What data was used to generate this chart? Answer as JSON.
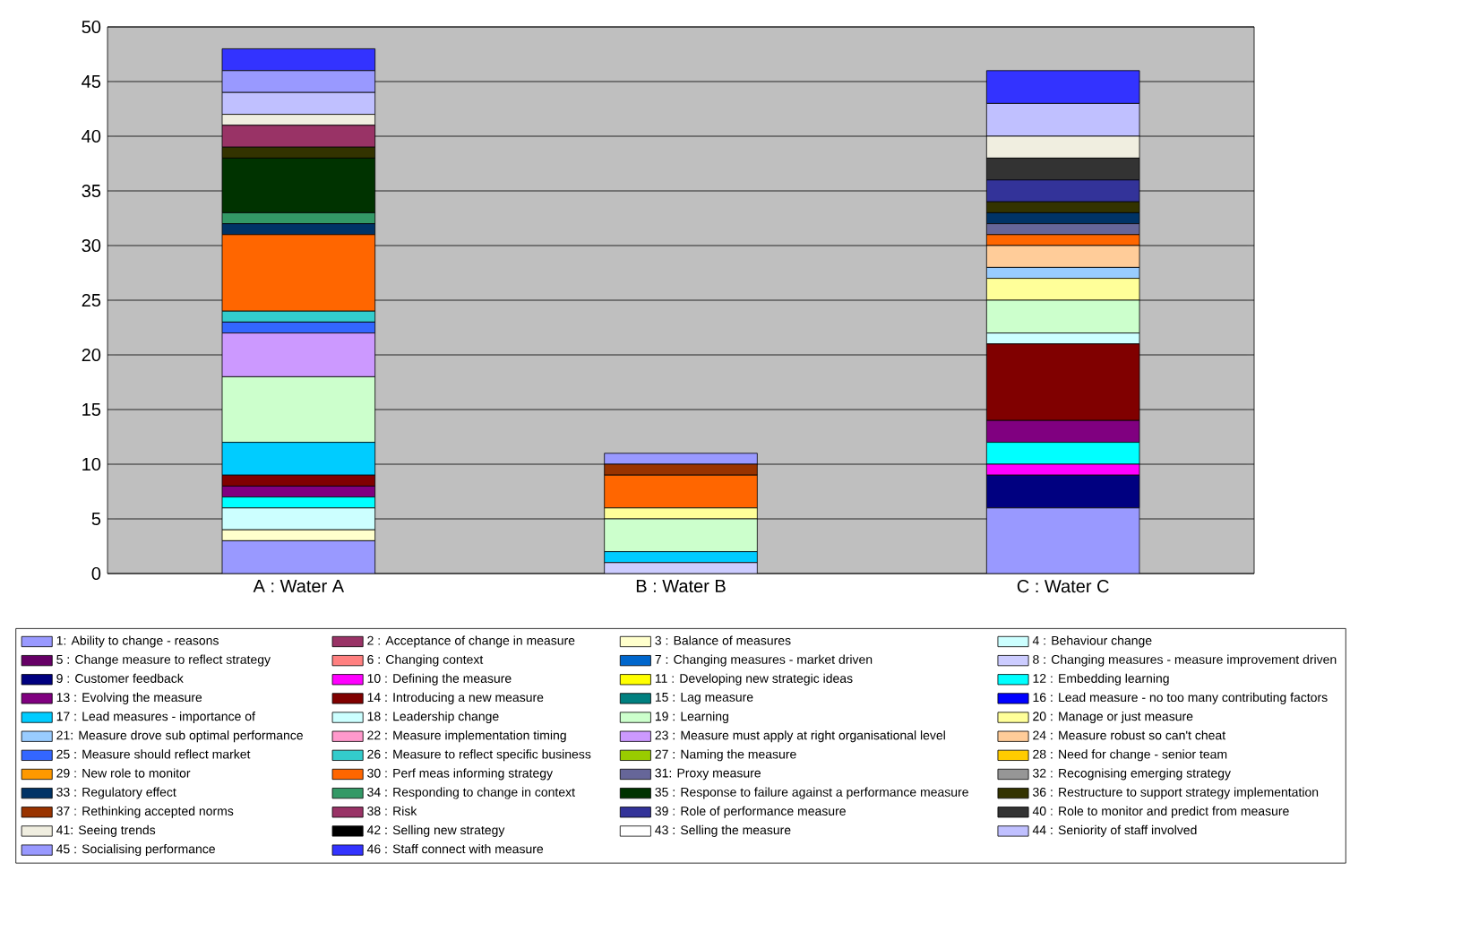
{
  "chart_data": {
    "type": "bar",
    "stacked": true,
    "grid": "y",
    "legend": "bottom",
    "categories": [
      "A : Water A",
      "B : Water B",
      "C : Water C"
    ],
    "ylim": [
      0,
      50
    ],
    "yticks": [
      0,
      5,
      10,
      15,
      20,
      25,
      30,
      35,
      40,
      45,
      50
    ],
    "series": [
      {
        "name": "1: Ability to change - reasons",
        "color": "#9999ff",
        "values": [
          3,
          0,
          6
        ]
      },
      {
        "name": "2 : Acceptance of change in measure",
        "color": "#993366",
        "values": [
          0,
          0,
          0
        ]
      },
      {
        "name": "3 : Balance of measures",
        "color": "#ffffcc",
        "values": [
          1,
          0,
          0
        ]
      },
      {
        "name": "4 : Behaviour change",
        "color": "#ccffff",
        "values": [
          2,
          0,
          0
        ]
      },
      {
        "name": "5 : Change measure to reflect strategy",
        "color": "#660066",
        "values": [
          0,
          0,
          0
        ]
      },
      {
        "name": "6 : Changing context",
        "color": "#ff8080",
        "values": [
          0,
          0,
          0
        ]
      },
      {
        "name": "7 : Changing measures - market driven",
        "color": "#0066cc",
        "values": [
          0,
          0,
          0
        ]
      },
      {
        "name": "8 : Changing measures - measure improvement driven",
        "color": "#ccccff",
        "values": [
          0,
          1,
          0
        ]
      },
      {
        "name": "9 : Customer feedback",
        "color": "#000080",
        "values": [
          0,
          0,
          3
        ]
      },
      {
        "name": "10 : Defining the measure",
        "color": "#ff00ff",
        "values": [
          0,
          0,
          1
        ]
      },
      {
        "name": "11 : Developing new strategic ideas",
        "color": "#ffff00",
        "values": [
          0,
          0,
          0
        ]
      },
      {
        "name": "12 : Embedding learning",
        "color": "#00ffff",
        "values": [
          1,
          0,
          2
        ]
      },
      {
        "name": "13 : Evolving the measure",
        "color": "#800080",
        "values": [
          1,
          0,
          2
        ]
      },
      {
        "name": "14 : Introducing a new measure",
        "color": "#800000",
        "values": [
          1,
          0,
          7
        ]
      },
      {
        "name": "15 : Lag measure",
        "color": "#008080",
        "values": [
          0,
          0,
          0
        ]
      },
      {
        "name": "16 : Lead measure - no too many contributing factors",
        "color": "#0000ff",
        "values": [
          0,
          0,
          0
        ]
      },
      {
        "name": "17 : Lead measures - importance of",
        "color": "#00ccff",
        "values": [
          3,
          1,
          0
        ]
      },
      {
        "name": "18 : Leadership change",
        "color": "#ccffff",
        "values": [
          0,
          0,
          1
        ]
      },
      {
        "name": "19 : Learning",
        "color": "#ccffcc",
        "values": [
          6,
          3,
          3
        ]
      },
      {
        "name": "20 : Manage or just measure",
        "color": "#ffff99",
        "values": [
          0,
          1,
          2
        ]
      },
      {
        "name": "21: Measure drove sub optimal performance",
        "color": "#99ccff",
        "values": [
          0,
          0,
          1
        ]
      },
      {
        "name": "22 : Measure implementation timing",
        "color": "#ff99cc",
        "values": [
          0,
          0,
          0
        ]
      },
      {
        "name": "23 : Measure must apply at right organisational level",
        "color": "#cc99ff",
        "values": [
          4,
          0,
          0
        ]
      },
      {
        "name": "24 : Measure robust so can't cheat",
        "color": "#ffcc99",
        "values": [
          0,
          0,
          2
        ]
      },
      {
        "name": "25 : Measure should reflect market",
        "color": "#3366ff",
        "values": [
          1,
          0,
          0
        ]
      },
      {
        "name": "26 : Measure to reflect specific business",
        "color": "#33cccc",
        "values": [
          1,
          0,
          0
        ]
      },
      {
        "name": "27 : Naming the measure",
        "color": "#99cc00",
        "values": [
          0,
          0,
          0
        ]
      },
      {
        "name": "28 : Need for change - senior team",
        "color": "#ffcc00",
        "values": [
          0,
          0,
          0
        ]
      },
      {
        "name": "29 : New role to monitor",
        "color": "#ff9900",
        "values": [
          0,
          0,
          0
        ]
      },
      {
        "name": "30 : Perf meas informing strategy",
        "color": "#ff6600",
        "values": [
          7,
          3,
          1
        ]
      },
      {
        "name": "31: Proxy measure",
        "color": "#666699",
        "values": [
          0,
          0,
          1
        ]
      },
      {
        "name": "32 : Recognising emerging strategy",
        "color": "#969696",
        "values": [
          0,
          0,
          0
        ]
      },
      {
        "name": "33 : Regulatory effect",
        "color": "#003366",
        "values": [
          1,
          0,
          1
        ]
      },
      {
        "name": "34 : Responding to change in context",
        "color": "#339966",
        "values": [
          1,
          0,
          0
        ]
      },
      {
        "name": "35 : Response to failure against a performance measure",
        "color": "#003300",
        "values": [
          5,
          0,
          0
        ]
      },
      {
        "name": "36 : Restructure to support strategy implementation",
        "color": "#333300",
        "values": [
          1,
          0,
          1
        ]
      },
      {
        "name": "37 : Rethinking accepted norms",
        "color": "#993300",
        "values": [
          0,
          1,
          0
        ]
      },
      {
        "name": "38 : Risk",
        "color": "#993366",
        "values": [
          2,
          0,
          0
        ]
      },
      {
        "name": "39 : Role of performance measure",
        "color": "#333399",
        "values": [
          0,
          0,
          2
        ]
      },
      {
        "name": "40 : Role to monitor and predict from measure",
        "color": "#333333",
        "values": [
          0,
          0,
          2
        ]
      },
      {
        "name": "41: Seeing trends",
        "color": "#f0eee0",
        "values": [
          1,
          0,
          2
        ]
      },
      {
        "name": "42 : Selling new strategy",
        "color": "#000000",
        "values": [
          0,
          0,
          0
        ]
      },
      {
        "name": "43 : Selling the measure",
        "color": "#ffffff",
        "values": [
          0,
          0,
          0
        ]
      },
      {
        "name": "44 : Seniority of staff involved",
        "color": "#c0c0ff",
        "values": [
          2,
          0,
          3
        ]
      },
      {
        "name": "45 : Socialising performance",
        "color": "#9999ff",
        "values": [
          2,
          1,
          0
        ]
      },
      {
        "name": "46 : Staff connect with measure",
        "color": "#3333ff",
        "values": [
          2,
          0,
          3
        ]
      }
    ]
  }
}
